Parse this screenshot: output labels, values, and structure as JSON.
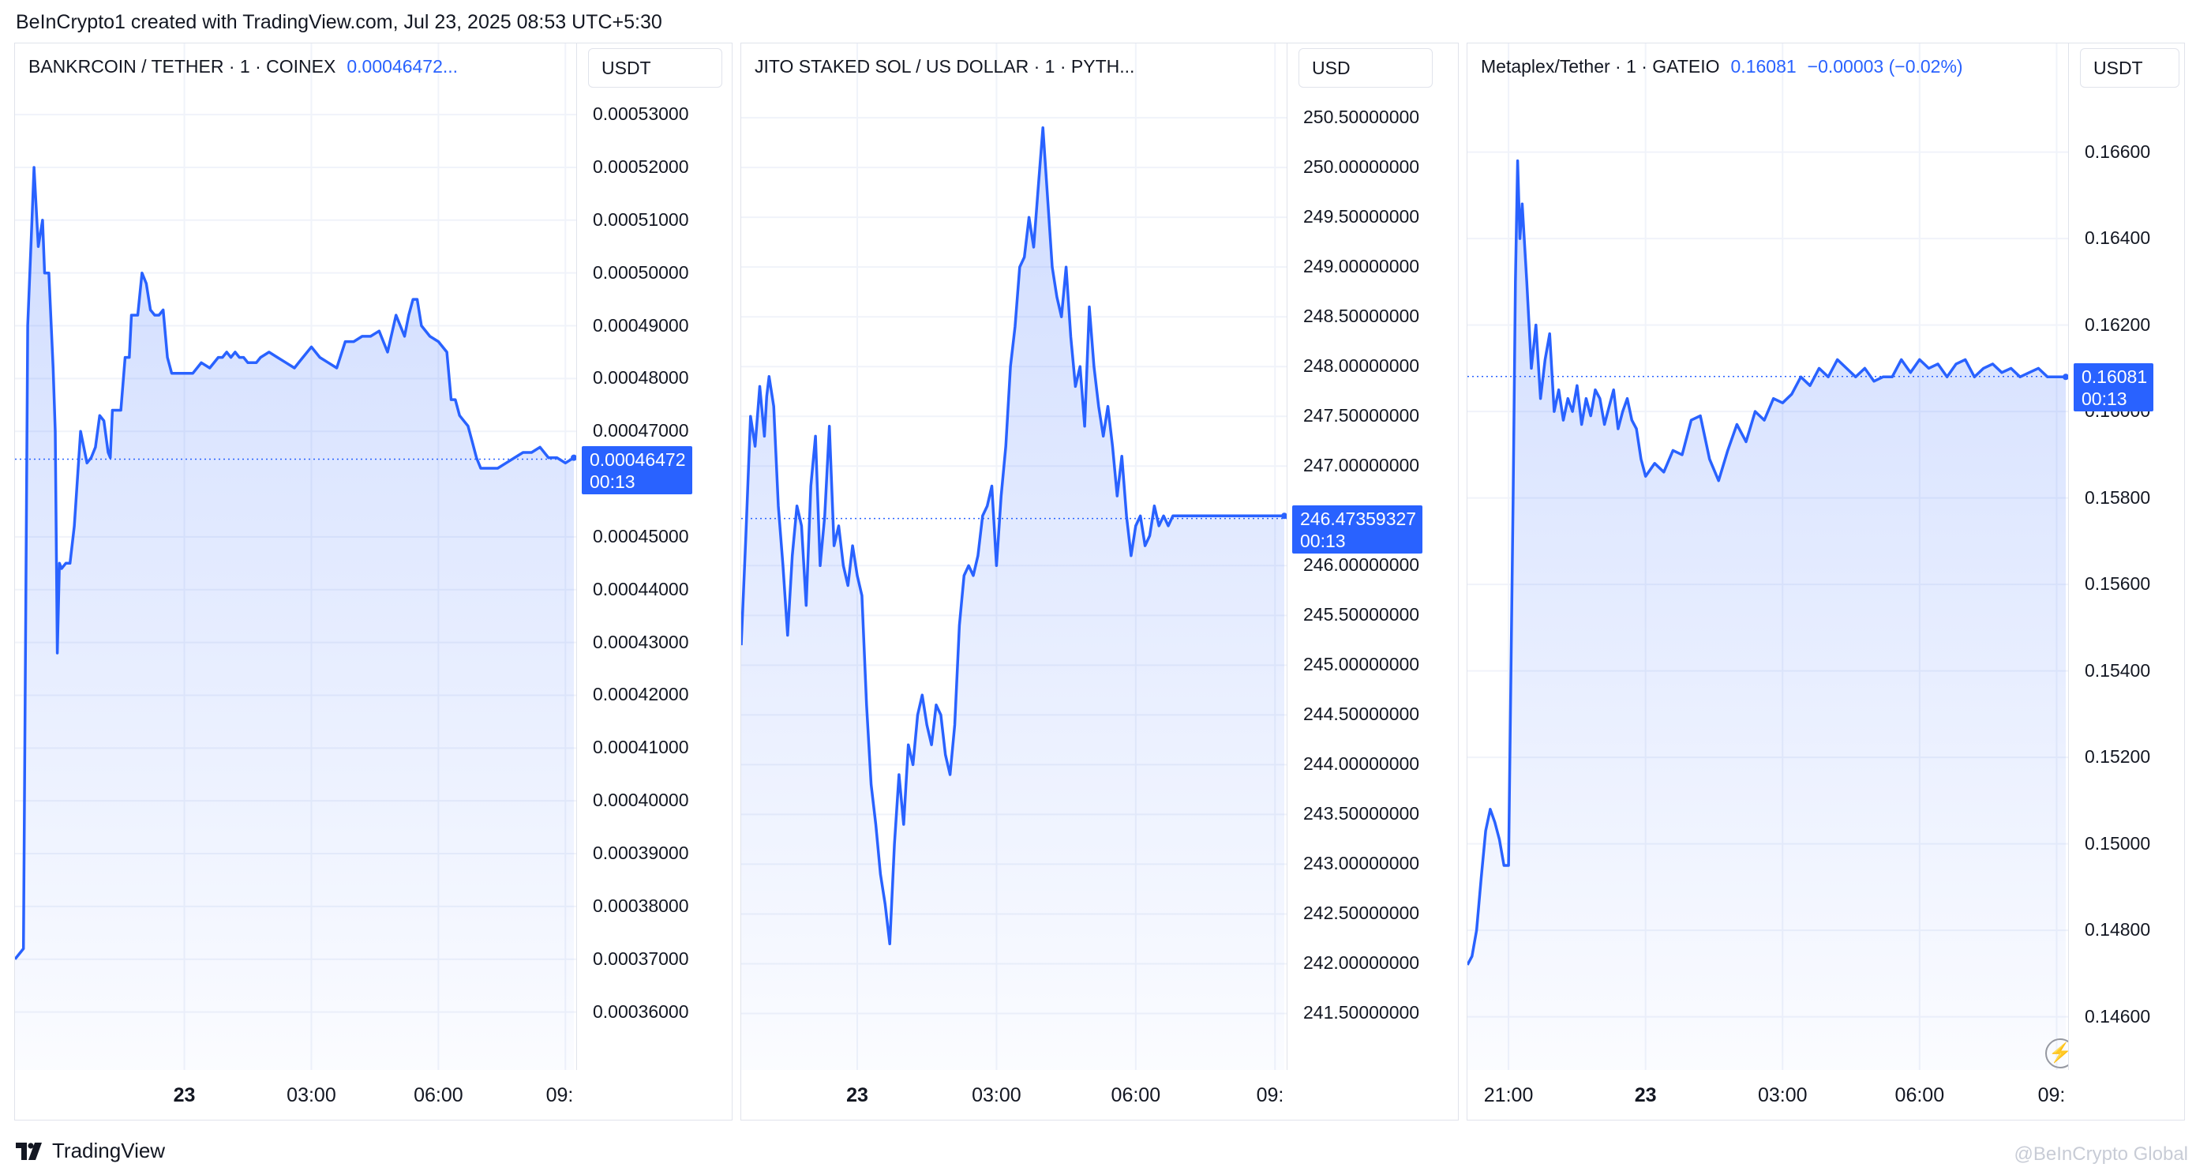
{
  "header": {
    "credit": "BeInCrypto1 created with TradingView.com, Jul 23, 2025 08:53 UTC+5:30"
  },
  "footer": {
    "logo_text": "TradingView",
    "watermark": "@BeInCrypto Global"
  },
  "colors": {
    "accent": "#2962ff",
    "grid": "#f0f3fa",
    "border": "#e0e3eb"
  },
  "chart_data": [
    {
      "type": "area",
      "legend": {
        "symbol": "BANKRCOIN / TETHER · 1 · COINEX",
        "price": "0.00046472..."
      },
      "unit": "USDT",
      "ylim": [
        0.000355,
        0.000536
      ],
      "yticks": [
        "0.00036000",
        "0.00037000",
        "0.00038000",
        "0.00039000",
        "0.00040000",
        "0.00041000",
        "0.00042000",
        "0.00043000",
        "0.00044000",
        "0.00045000",
        "0.00047000",
        "0.00048000",
        "0.00049000",
        "0.00050000",
        "0.00051000",
        "0.00052000",
        "0.00053000"
      ],
      "last_price": {
        "value": 0.00046472,
        "label": "0.00046472",
        "countdown": "00:13"
      },
      "xlim": [
        -4.0,
        9.2
      ],
      "xticks": [
        {
          "x": 0,
          "label": "23",
          "bold": true
        },
        {
          "x": 3,
          "label": "03:00",
          "bold": false
        },
        {
          "x": 6,
          "label": "06:00",
          "bold": false
        },
        {
          "x": 9,
          "label": "09:",
          "bold": false
        }
      ],
      "x": [
        -4.0,
        -3.8,
        -3.7,
        -3.6,
        -3.55,
        -3.45,
        -3.35,
        -3.3,
        -3.2,
        -3.1,
        -3.05,
        -3.0,
        -2.95,
        -2.9,
        -2.8,
        -2.7,
        -2.6,
        -2.45,
        -2.3,
        -2.2,
        -2.1,
        -2.0,
        -1.9,
        -1.8,
        -1.75,
        -1.7,
        -1.6,
        -1.5,
        -1.4,
        -1.3,
        -1.25,
        -1.2,
        -1.1,
        -1.0,
        -0.9,
        -0.8,
        -0.7,
        -0.6,
        -0.5,
        -0.4,
        -0.3,
        -0.2,
        -0.1,
        0.0,
        0.2,
        0.4,
        0.6,
        0.8,
        0.9,
        1.0,
        1.1,
        1.2,
        1.3,
        1.4,
        1.5,
        1.6,
        1.7,
        1.8,
        2.0,
        2.2,
        2.4,
        2.6,
        2.8,
        3.0,
        3.2,
        3.4,
        3.6,
        3.8,
        4.0,
        4.2,
        4.4,
        4.6,
        4.8,
        5.0,
        5.2,
        5.3,
        5.4,
        5.5,
        5.6,
        5.8,
        6.0,
        6.2,
        6.3,
        6.4,
        6.5,
        6.6,
        6.7,
        6.8,
        6.9,
        7.0,
        7.2,
        7.4,
        7.6,
        7.8,
        8.0,
        8.2,
        8.4,
        8.6,
        8.8,
        9.0,
        9.2
      ],
      "y": [
        0.00037,
        0.000372,
        0.00049,
        0.00051,
        0.00052,
        0.000505,
        0.00051,
        0.0005,
        0.0005,
        0.000482,
        0.00047,
        0.000428,
        0.000445,
        0.000444,
        0.000445,
        0.000445,
        0.000452,
        0.00047,
        0.000464,
        0.000465,
        0.000467,
        0.000473,
        0.000472,
        0.000466,
        0.000465,
        0.000474,
        0.000474,
        0.000474,
        0.000484,
        0.000484,
        0.000492,
        0.000492,
        0.000492,
        0.0005,
        0.000498,
        0.000493,
        0.000492,
        0.000492,
        0.000493,
        0.000484,
        0.000481,
        0.000481,
        0.000481,
        0.000481,
        0.000481,
        0.000483,
        0.000482,
        0.000484,
        0.000484,
        0.000485,
        0.000484,
        0.000485,
        0.000484,
        0.000484,
        0.000483,
        0.000483,
        0.000483,
        0.000484,
        0.000485,
        0.000484,
        0.000483,
        0.000482,
        0.000484,
        0.000486,
        0.000484,
        0.000483,
        0.000482,
        0.000487,
        0.000487,
        0.000488,
        0.000488,
        0.000489,
        0.000485,
        0.000492,
        0.000488,
        0.000492,
        0.000495,
        0.000495,
        0.00049,
        0.000488,
        0.000487,
        0.000485,
        0.000476,
        0.000476,
        0.000473,
        0.000472,
        0.000471,
        0.000468,
        0.000465,
        0.000463,
        0.000463,
        0.000463,
        0.000464,
        0.000465,
        0.000466,
        0.000466,
        0.000467,
        0.000465,
        0.000465,
        0.000464,
        0.000465
      ]
    },
    {
      "type": "area",
      "legend": {
        "symbol": "JITO STAKED SOL / US DOLLAR · 1 · PYTH..."
      },
      "unit": "USD",
      "ylim": [
        241.25,
        250.85
      ],
      "yticks": [
        "241.50000000",
        "242.00000000",
        "242.50000000",
        "243.00000000",
        "243.50000000",
        "244.00000000",
        "244.50000000",
        "245.00000000",
        "245.50000000",
        "246.00000000",
        "247.00000000",
        "247.50000000",
        "248.00000000",
        "248.50000000",
        "249.00000000",
        "249.50000000",
        "250.00000000",
        "250.50000000"
      ],
      "last_price": {
        "value": 246.47359327,
        "label": "246.47359327",
        "countdown": "00:13"
      },
      "xlim": [
        -2.5,
        9.2
      ],
      "xticks": [
        {
          "x": 0,
          "label": "23",
          "bold": true
        },
        {
          "x": 3,
          "label": "03:00",
          "bold": false
        },
        {
          "x": 6,
          "label": "06:00",
          "bold": false
        },
        {
          "x": 9,
          "label": "09:",
          "bold": false
        }
      ],
      "x": [
        -2.5,
        -2.4,
        -2.3,
        -2.2,
        -2.1,
        -2.0,
        -1.95,
        -1.9,
        -1.8,
        -1.7,
        -1.6,
        -1.5,
        -1.4,
        -1.3,
        -1.2,
        -1.1,
        -1.0,
        -0.9,
        -0.8,
        -0.7,
        -0.6,
        -0.5,
        -0.4,
        -0.3,
        -0.2,
        -0.1,
        0.0,
        0.1,
        0.2,
        0.3,
        0.4,
        0.5,
        0.6,
        0.7,
        0.8,
        0.9,
        1.0,
        1.1,
        1.2,
        1.3,
        1.4,
        1.5,
        1.6,
        1.7,
        1.8,
        1.9,
        2.0,
        2.1,
        2.2,
        2.3,
        2.4,
        2.5,
        2.6,
        2.7,
        2.8,
        2.9,
        3.0,
        3.1,
        3.2,
        3.3,
        3.4,
        3.5,
        3.6,
        3.7,
        3.8,
        3.9,
        4.0,
        4.1,
        4.2,
        4.3,
        4.4,
        4.5,
        4.6,
        4.7,
        4.8,
        4.9,
        5.0,
        5.1,
        5.2,
        5.3,
        5.4,
        5.5,
        5.6,
        5.7,
        5.8,
        5.9,
        6.0,
        6.1,
        6.2,
        6.3,
        6.4,
        6.5,
        6.6,
        6.7,
        6.8,
        6.9,
        7.0,
        7.1,
        7.2,
        7.3,
        7.4,
        7.5,
        7.6,
        7.7,
        7.8,
        7.9,
        8.0,
        8.1,
        8.2,
        8.3,
        8.4,
        8.5,
        8.6,
        8.7,
        8.8,
        8.9,
        9.0,
        9.1,
        9.2
      ],
      "y": [
        245.2,
        246.3,
        247.5,
        247.2,
        247.8,
        247.3,
        247.7,
        247.9,
        247.6,
        246.6,
        246.0,
        245.3,
        246.1,
        246.6,
        246.4,
        245.6,
        246.8,
        247.3,
        246.0,
        246.5,
        247.4,
        246.2,
        246.4,
        246.0,
        245.8,
        246.2,
        245.9,
        245.7,
        244.6,
        243.8,
        243.4,
        242.9,
        242.6,
        242.2,
        243.2,
        243.9,
        243.4,
        244.2,
        244.0,
        244.5,
        244.7,
        244.4,
        244.2,
        244.6,
        244.5,
        244.1,
        243.9,
        244.4,
        245.4,
        245.9,
        246.0,
        245.9,
        246.1,
        246.5,
        246.6,
        246.8,
        246.0,
        246.7,
        247.2,
        248.0,
        248.4,
        249.0,
        249.1,
        249.5,
        249.2,
        249.8,
        250.4,
        249.7,
        249.0,
        248.7,
        248.5,
        249.0,
        248.3,
        247.8,
        248.0,
        247.4,
        248.6,
        248.0,
        247.6,
        247.3,
        247.6,
        247.2,
        246.7,
        247.1,
        246.5,
        246.1,
        246.4,
        246.5,
        246.2,
        246.3,
        246.6,
        246.4,
        246.5,
        246.4,
        246.5,
        246.5,
        246.5,
        246.5,
        246.5,
        246.5,
        246.5,
        246.5,
        246.5,
        246.5,
        246.5,
        246.5,
        246.5,
        246.5,
        246.5,
        246.5,
        246.5,
        246.5,
        246.5,
        246.5,
        246.5,
        246.5,
        246.5,
        246.5,
        246.5
      ]
    },
    {
      "type": "area",
      "legend": {
        "symbol": "Metaplex/Tether · 1 · GATEIO",
        "price": "0.16081",
        "change": "−0.00003 (−0.02%)"
      },
      "unit": "USDT",
      "ylim": [
        0.1455,
        0.1676
      ],
      "yticks": [
        "0.14600",
        "0.14800",
        "0.15000",
        "0.15200",
        "0.15400",
        "0.15600",
        "0.15800",
        "0.16000",
        "0.16200",
        "0.16400",
        "0.16600"
      ],
      "last_price": {
        "value": 0.16081,
        "label": "0.16081",
        "countdown": "00:13"
      },
      "xlim": [
        -3.9,
        9.2
      ],
      "xticks": [
        {
          "x": -3,
          "label": "21:00",
          "bold": false
        },
        {
          "x": 0,
          "label": "23",
          "bold": true
        },
        {
          "x": 3,
          "label": "03:00",
          "bold": false
        },
        {
          "x": 6,
          "label": "06:00",
          "bold": false
        },
        {
          "x": 9,
          "label": "09:",
          "bold": false
        }
      ],
      "x": [
        -3.9,
        -3.8,
        -3.7,
        -3.6,
        -3.5,
        -3.4,
        -3.3,
        -3.2,
        -3.1,
        -3.0,
        -2.9,
        -2.85,
        -2.8,
        -2.75,
        -2.7,
        -2.6,
        -2.5,
        -2.4,
        -2.3,
        -2.2,
        -2.1,
        -2.0,
        -1.9,
        -1.8,
        -1.7,
        -1.6,
        -1.5,
        -1.4,
        -1.3,
        -1.2,
        -1.1,
        -1.0,
        -0.9,
        -0.8,
        -0.7,
        -0.6,
        -0.5,
        -0.4,
        -0.3,
        -0.2,
        -0.1,
        0.0,
        0.2,
        0.4,
        0.6,
        0.8,
        1.0,
        1.2,
        1.4,
        1.6,
        1.8,
        2.0,
        2.2,
        2.4,
        2.6,
        2.8,
        3.0,
        3.2,
        3.4,
        3.6,
        3.8,
        4.0,
        4.2,
        4.4,
        4.6,
        4.8,
        5.0,
        5.2,
        5.4,
        5.6,
        5.8,
        6.0,
        6.2,
        6.4,
        6.6,
        6.8,
        7.0,
        7.2,
        7.4,
        7.6,
        7.8,
        8.0,
        8.2,
        8.4,
        8.6,
        8.8,
        9.0,
        9.2
      ],
      "y": [
        0.1472,
        0.1474,
        0.148,
        0.1492,
        0.1503,
        0.1508,
        0.1505,
        0.1501,
        0.1495,
        0.1495,
        0.158,
        0.163,
        0.1658,
        0.164,
        0.1648,
        0.163,
        0.161,
        0.162,
        0.1603,
        0.1612,
        0.1618,
        0.16,
        0.1605,
        0.1598,
        0.1603,
        0.16,
        0.1606,
        0.1597,
        0.1603,
        0.1599,
        0.1605,
        0.1603,
        0.1597,
        0.1601,
        0.1605,
        0.1596,
        0.16,
        0.1603,
        0.1598,
        0.1596,
        0.1589,
        0.1585,
        0.1588,
        0.1586,
        0.1591,
        0.159,
        0.1598,
        0.1599,
        0.1589,
        0.1584,
        0.1591,
        0.1597,
        0.1593,
        0.16,
        0.1598,
        0.1603,
        0.1602,
        0.1604,
        0.1608,
        0.1606,
        0.161,
        0.1608,
        0.1612,
        0.161,
        0.1608,
        0.161,
        0.1607,
        0.1608,
        0.1608,
        0.1612,
        0.1609,
        0.1612,
        0.161,
        0.1611,
        0.1608,
        0.1611,
        0.1612,
        0.1608,
        0.161,
        0.1611,
        0.1609,
        0.161,
        0.1608,
        0.1609,
        0.161,
        0.1608,
        0.1608,
        0.1608
      ]
    }
  ]
}
